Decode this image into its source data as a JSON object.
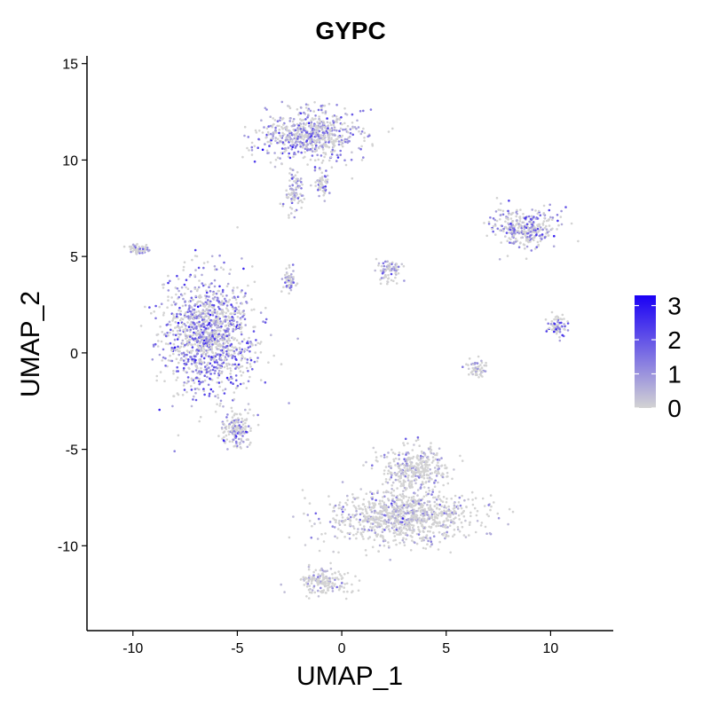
{
  "chart_data": {
    "type": "scatter",
    "title": "GYPC",
    "xlabel": "UMAP_1",
    "ylabel": "UMAP_2",
    "xlim": [
      -12.2,
      13.0
    ],
    "ylim": [
      -14.4,
      15.4
    ],
    "x_ticks": [
      -10,
      -5,
      0,
      5,
      10
    ],
    "y_ticks": [
      -10,
      -5,
      0,
      5,
      10,
      15
    ],
    "x_tick_labels": [
      "-10",
      "-5",
      "0",
      "5",
      "10"
    ],
    "y_tick_labels": [
      "-10",
      "-5",
      "0",
      "5",
      "10",
      "15"
    ],
    "grid": false,
    "legend": {
      "placement": "right",
      "type": "colorbar",
      "min": 0,
      "max": 3.3,
      "ticks": [
        0,
        1,
        2,
        3
      ],
      "tick_labels": [
        "0",
        "1",
        "2",
        "3"
      ]
    },
    "colors": {
      "low": "#d3d3d3",
      "high": "#1a00f5"
    },
    "clusters": [
      {
        "id": "left-large",
        "center": [
          -6.3,
          0.9
        ],
        "spread": [
          2.0,
          2.6
        ],
        "expression": 1.35
      },
      {
        "id": "left-lower-tail",
        "center": [
          -5.0,
          -3.9
        ],
        "spread": [
          0.7,
          0.9
        ],
        "expression": 0.9
      },
      {
        "id": "top-left",
        "center": [
          -1.5,
          11.3
        ],
        "spread": [
          2.2,
          1.2
        ],
        "expression": 1.05
      },
      {
        "id": "top-stem",
        "center": [
          -2.3,
          8.3
        ],
        "spread": [
          0.35,
          1.1
        ],
        "expression": 0.6
      },
      {
        "id": "top-droplet",
        "center": [
          -0.9,
          8.8
        ],
        "spread": [
          0.3,
          0.7
        ],
        "expression": 0.9
      },
      {
        "id": "bottom-large",
        "center": [
          3.0,
          -8.5
        ],
        "spread": [
          3.1,
          1.3
        ],
        "expression": 0.18
      },
      {
        "id": "bottom-upper",
        "center": [
          3.5,
          -6.0
        ],
        "spread": [
          1.4,
          1.0
        ],
        "expression": 0.15
      },
      {
        "id": "bottom-tail",
        "center": [
          -0.9,
          -11.8
        ],
        "spread": [
          1.2,
          0.6
        ],
        "expression": 0.08
      },
      {
        "id": "center-small",
        "center": [
          2.3,
          4.3
        ],
        "spread": [
          0.6,
          0.55
        ],
        "expression": 0.7
      },
      {
        "id": "right-top",
        "center": [
          8.8,
          6.5
        ],
        "spread": [
          1.5,
          0.9
        ],
        "expression": 1.2
      },
      {
        "id": "right-middle",
        "center": [
          10.3,
          1.5
        ],
        "spread": [
          0.45,
          0.6
        ],
        "expression": 1.4
      },
      {
        "id": "right-lower",
        "center": [
          6.5,
          -0.8
        ],
        "spread": [
          0.45,
          0.35
        ],
        "expression": 0.6
      },
      {
        "id": "small-left",
        "center": [
          -9.7,
          5.4
        ],
        "spread": [
          0.45,
          0.2
        ],
        "expression": 0.5
      },
      {
        "id": "small-mid",
        "center": [
          -2.5,
          3.8
        ],
        "spread": [
          0.25,
          0.5
        ],
        "expression": 0.7
      }
    ]
  }
}
